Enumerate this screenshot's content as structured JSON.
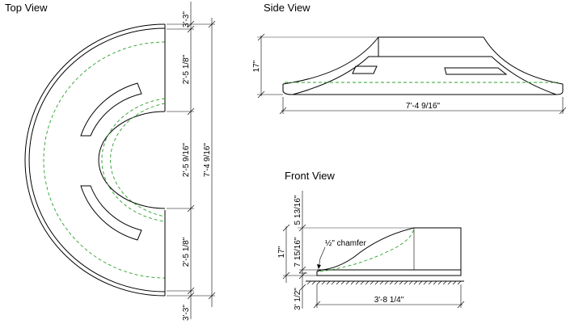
{
  "views": {
    "top": {
      "title": "Top View",
      "dims": {
        "edge_top": "3'-3\"",
        "seg1": "2'-5 1/8\"",
        "seg2": "2'-5 9/16\"",
        "seg3": "2'-5 1/8\"",
        "edge_bottom": "3'-3\"",
        "overall": "7'-4 9/16\""
      }
    },
    "side": {
      "title": "Side View",
      "height": "17\"",
      "width": "7'-4 9/16\""
    },
    "front": {
      "title": "Front View",
      "upper": "5 13/16\"",
      "middle": "7 15/16\"",
      "overall": "17\"",
      "base": "3' 1/2\"",
      "width": "3'-8 1/4\"",
      "note": "½\" chamfer"
    }
  },
  "colors": {
    "line": "#000000",
    "hidden": "#2ca02c"
  }
}
